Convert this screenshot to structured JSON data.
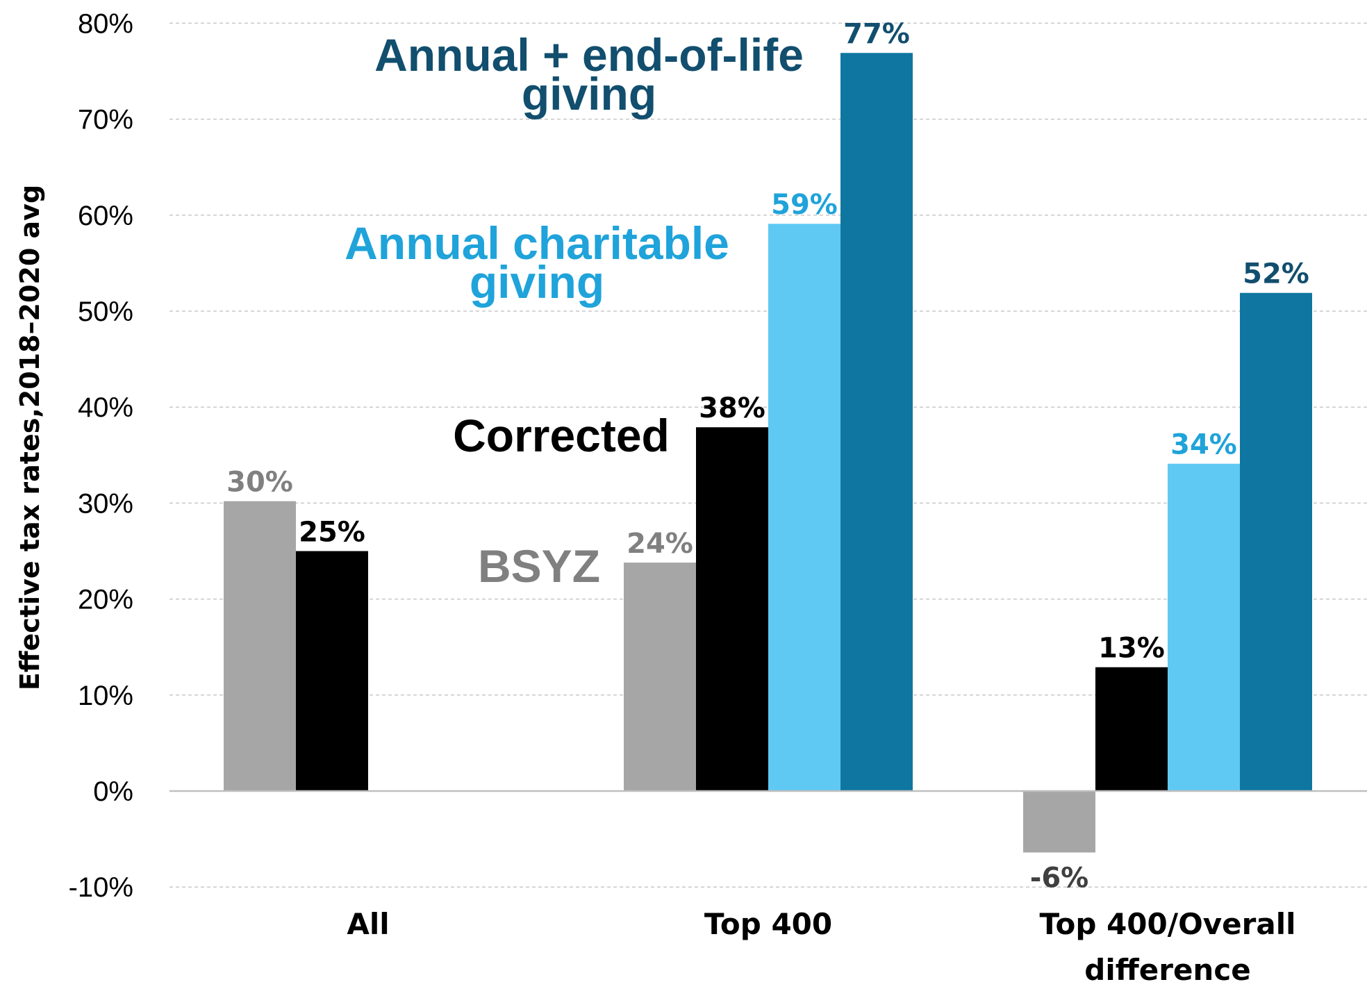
{
  "chart_data": {
    "type": "bar",
    "title": "",
    "xlabel": "",
    "ylabel": "Effective tax rates,2018–2020 avg",
    "ylim": [
      -10,
      80
    ],
    "yticks": [
      -10,
      0,
      10,
      20,
      30,
      40,
      50,
      60,
      70,
      80
    ],
    "ytick_labels": [
      "-10%",
      "0%",
      "10%",
      "20%",
      "30%",
      "40%",
      "50%",
      "60%",
      "70%",
      "80%"
    ],
    "grid": true,
    "categories": [
      {
        "lines": [
          "All"
        ]
      },
      {
        "lines": [
          "Top 400"
        ]
      },
      {
        "lines": [
          "Top 400/Overall",
          "difference"
        ]
      }
    ],
    "series": [
      {
        "name": "BSYZ",
        "label_lines": [
          "BSYZ"
        ],
        "color": "#A6A6A6",
        "label_color": "#808080",
        "values": [
          30.2,
          23.8,
          -6.4
        ],
        "value_labels": [
          "30%",
          "24%",
          "-6%"
        ]
      },
      {
        "name": "Corrected",
        "label_lines": [
          "Corrected"
        ],
        "color": "#000000",
        "label_color": "#000000",
        "values": [
          25.0,
          37.9,
          12.9
        ],
        "value_labels": [
          "25%",
          "38%",
          "13%"
        ]
      },
      {
        "name": "Annual charitable giving",
        "label_lines": [
          "Annual charitable",
          "giving"
        ],
        "color": "#5FC9F3",
        "label_color": "#1FA3DA",
        "values": [
          null,
          59.1,
          34.1
        ],
        "value_labels": [
          null,
          "59%",
          "34%"
        ]
      },
      {
        "name": "Annual + end-of-life giving",
        "label_lines": [
          "Annual + end-of-life",
          "giving"
        ],
        "color": "#0E76A1",
        "label_color": "#124E6E",
        "values": [
          null,
          76.9,
          51.9
        ],
        "value_labels": [
          null,
          "77%",
          "52%"
        ]
      }
    ]
  }
}
